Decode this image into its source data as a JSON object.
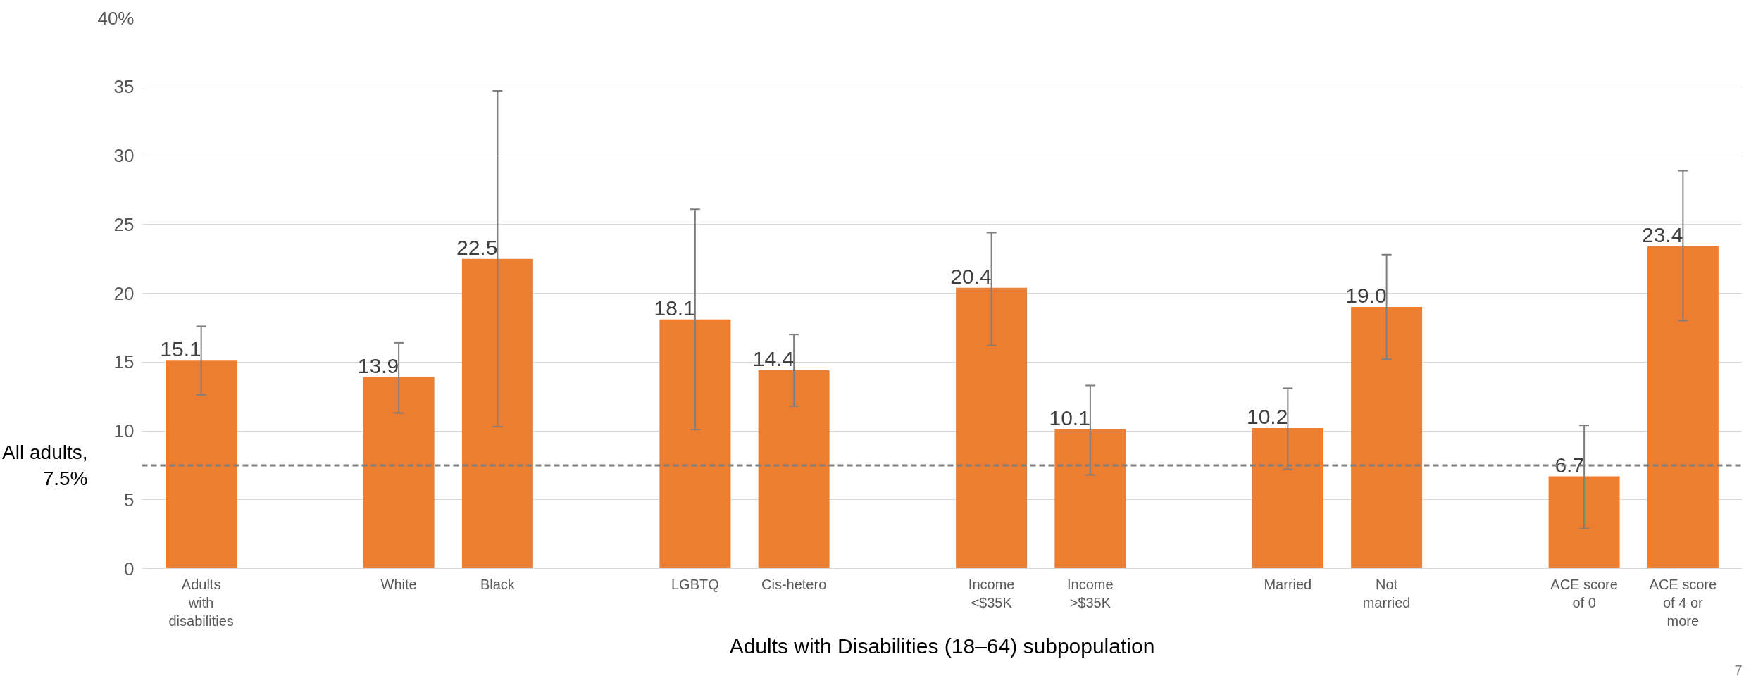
{
  "chart_data": {
    "type": "bar",
    "xlabel": "Adults with Disabilities (18–64) subpopulation",
    "categories": [
      "Adults\nwith\ndisabilities",
      null,
      "White",
      "Black",
      null,
      "LGBTQ",
      "Cis-hetero",
      null,
      "Income\n<$35K",
      "Income\n>$35K",
      null,
      "Married",
      "Not\nmarried",
      null,
      "ACE score\nof 0",
      "ACE score\nof 4 or\nmore"
    ],
    "values": [
      15.1,
      null,
      13.9,
      22.5,
      null,
      18.1,
      14.4,
      null,
      20.4,
      10.1,
      null,
      10.2,
      19.0,
      null,
      6.7,
      23.4
    ],
    "value_labels": [
      "15.1",
      null,
      "13.9",
      "22.5",
      null,
      "18.1",
      "14.4",
      null,
      "20.4",
      "10.1",
      null,
      "10.2",
      "19.0",
      null,
      "6.7",
      "23.4"
    ],
    "errors": [
      [
        12.6,
        17.6
      ],
      null,
      [
        11.3,
        16.4
      ],
      [
        10.3,
        34.7
      ],
      null,
      [
        10.1,
        26.1
      ],
      [
        11.8,
        17.0
      ],
      null,
      [
        16.2,
        24.4
      ],
      [
        6.8,
        13.3
      ],
      null,
      [
        7.2,
        13.1
      ],
      [
        15.2,
        22.8
      ],
      null,
      [
        2.9,
        10.4
      ],
      [
        18.0,
        28.9
      ]
    ],
    "color": "#ed7d31",
    "ylim": [
      0,
      40
    ],
    "yticks": [
      0,
      5,
      10,
      15,
      20,
      25,
      30,
      35,
      {
        "value": 40,
        "label": "40%"
      }
    ],
    "grid": "y",
    "ref_lines": [
      {
        "axis": "y",
        "value": 7.5,
        "label": "All adults,\n7.5%",
        "color": "#7f7f7f",
        "line_style": "dashed"
      }
    ],
    "annotations": [
      "7"
    ]
  }
}
